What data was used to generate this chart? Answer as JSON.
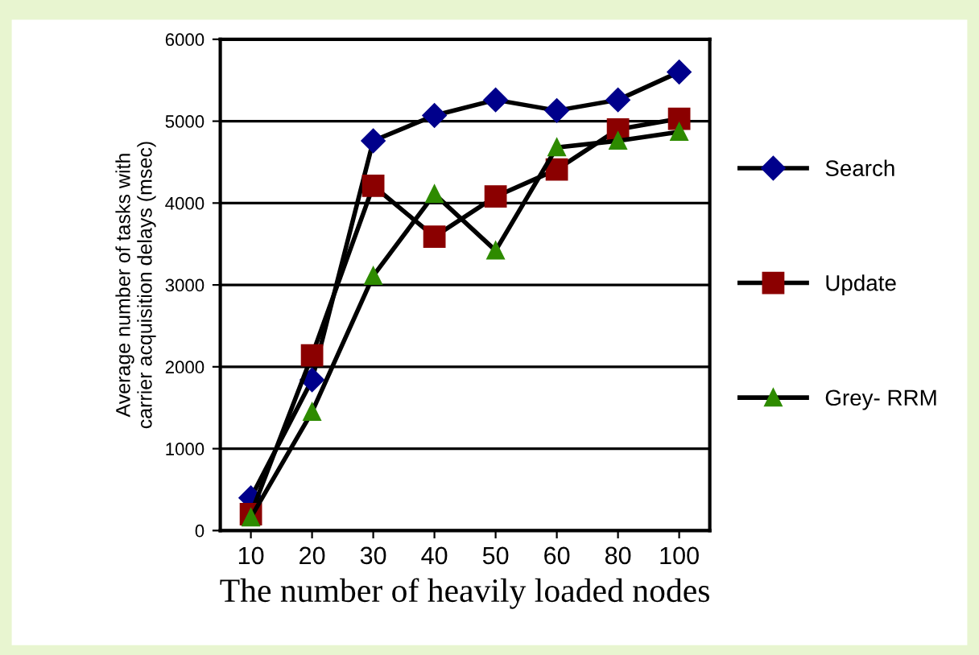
{
  "chart_data": {
    "type": "line",
    "xlabel": "The number of heavily loaded nodes",
    "ylabel": "Average number of tasks with\ncarrier acquisition delays (msec)",
    "categories": [
      "10",
      "20",
      "30",
      "40",
      "50",
      "60",
      "80",
      "100"
    ],
    "series": [
      {
        "name": "Search",
        "color": "#00008b",
        "marker": "diamond",
        "values": [
          400,
          1840,
          4760,
          5070,
          5260,
          5130,
          5260,
          5600
        ]
      },
      {
        "name": "Update",
        "color": "#8b0000",
        "marker": "square",
        "values": [
          200,
          2140,
          4210,
          3590,
          4080,
          4410,
          4900,
          5030
        ]
      },
      {
        "name": "Grey- RRM",
        "color": "#2e8b00",
        "marker": "triangle",
        "values": [
          160,
          1450,
          3110,
          4110,
          3420,
          4680,
          4760,
          4870
        ]
      }
    ],
    "ylim": [
      0,
      6000
    ],
    "yticks": [
      0,
      1000,
      2000,
      3000,
      4000,
      5000,
      6000
    ],
    "grid": "y",
    "legend": "right",
    "line_style": "solid"
  }
}
